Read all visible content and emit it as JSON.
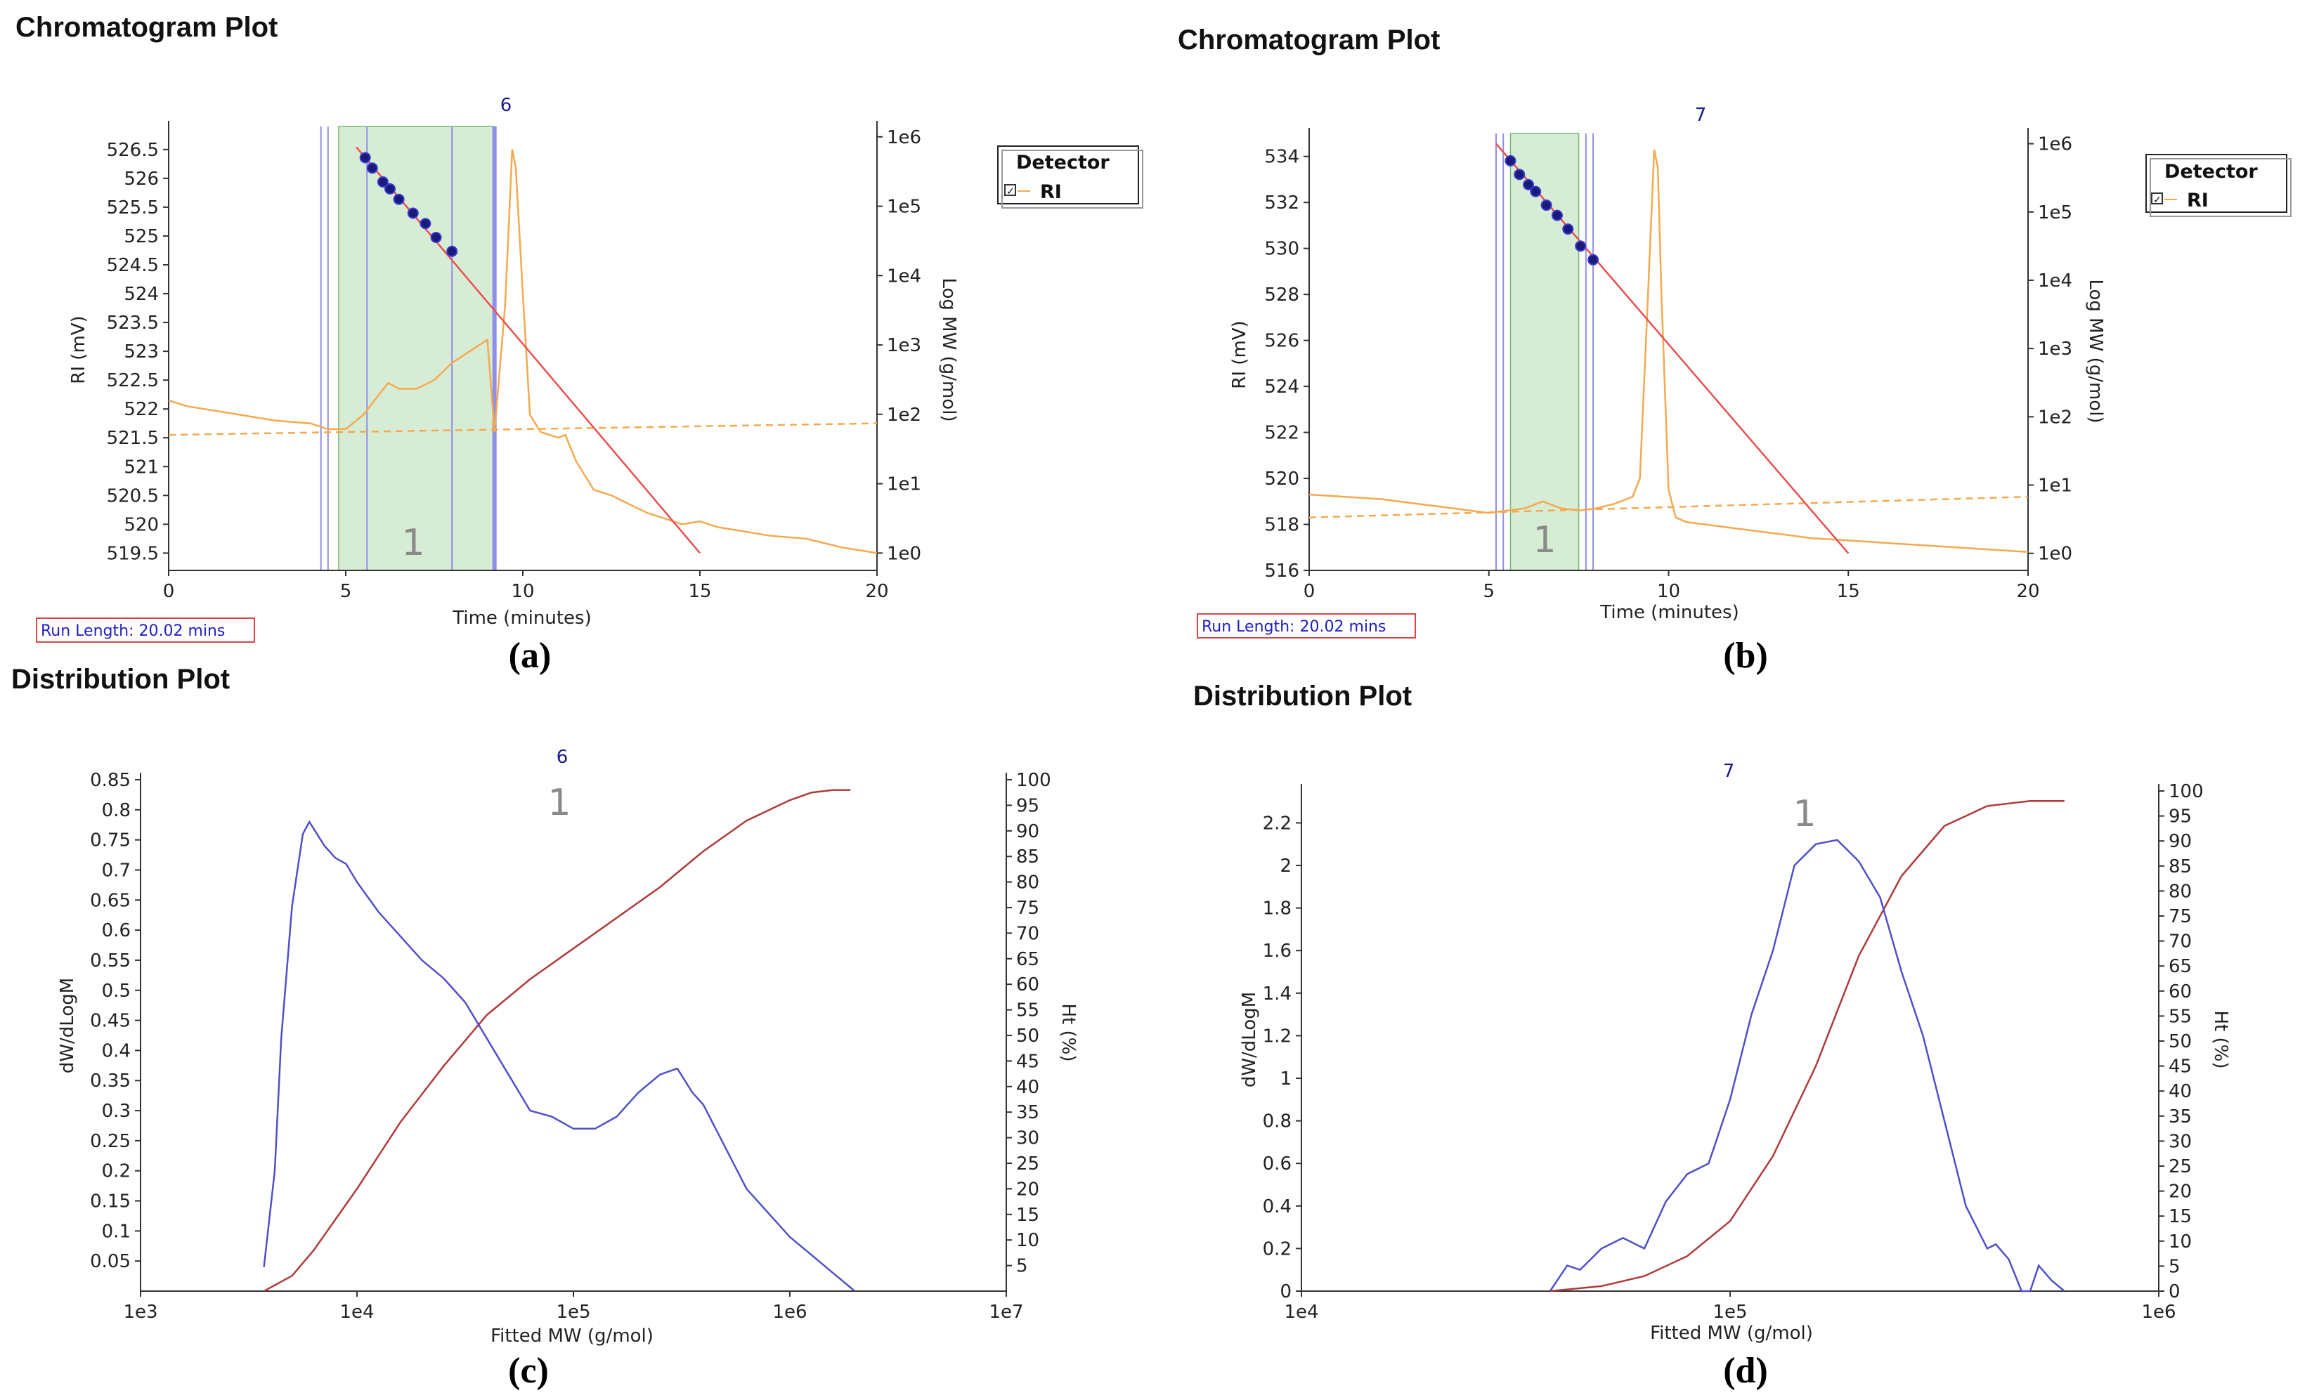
{
  "chart_data": [
    {
      "id": "a",
      "type": "line",
      "title": "Chromatogram Plot",
      "caption": "(a)",
      "xlabel": "Time (minutes)",
      "ylabel": "RI (mV)",
      "y2label": "Log MW (g/mol)",
      "xlim": [
        0,
        20
      ],
      "ylim": [
        519.2,
        526.9
      ],
      "xticks": [
        0,
        5,
        10,
        15,
        20
      ],
      "yticks": [
        519.5,
        520,
        520.5,
        521,
        521.5,
        522,
        522.5,
        523,
        523.5,
        524,
        524.5,
        525,
        525.5,
        526,
        526.5
      ],
      "y2ticks": [
        "1e0",
        "1e1",
        "1e2",
        "1e3",
        "1e4",
        "1e5",
        "1e6"
      ],
      "peak_marker": "6",
      "integration_label": "1",
      "run_length": "Run Length: 20.02 mins",
      "legend": {
        "title": "Detector",
        "entries": [
          "RI"
        ]
      },
      "regions": {
        "shade": [
          4.8,
          9.2
        ],
        "lines": [
          4.3,
          4.5,
          5.6,
          8.0,
          9.2
        ]
      },
      "series": [
        {
          "name": "RI",
          "style": "orange",
          "x": [
            0,
            0.5,
            1,
            2,
            3,
            4,
            4.5,
            5,
            5.5,
            6,
            6.2,
            6.5,
            7,
            7.5,
            8,
            8.5,
            9,
            9.2,
            9.5,
            9.7,
            9.8,
            10,
            10.2,
            10.5,
            11,
            11.2,
            11.5,
            12,
            12.5,
            13,
            13.5,
            14,
            14.5,
            15,
            15.5,
            16,
            17,
            18,
            19,
            20
          ],
          "values": [
            522.15,
            522.05,
            522.0,
            521.9,
            521.8,
            521.75,
            521.65,
            521.65,
            521.9,
            522.3,
            522.45,
            522.35,
            522.35,
            522.5,
            522.8,
            523.0,
            523.2,
            521.6,
            523.8,
            526.5,
            526.2,
            524.0,
            521.9,
            521.6,
            521.5,
            521.55,
            521.1,
            520.6,
            520.5,
            520.35,
            520.2,
            520.1,
            520.0,
            520.05,
            519.95,
            519.9,
            519.8,
            519.75,
            519.6,
            519.5
          ]
        },
        {
          "name": "Baseline",
          "style": "dashed",
          "x": [
            0,
            20
          ],
          "values": [
            521.55,
            521.75
          ]
        },
        {
          "name": "Calibration",
          "style": "red",
          "x": [
            5.3,
            15.0
          ],
          "logmw": [
            5.85,
            0.0
          ]
        },
        {
          "name": "Calibration points",
          "style": "dots",
          "x": [
            5.55,
            5.75,
            6.05,
            6.25,
            6.5,
            6.9,
            7.25,
            7.55,
            8.0
          ],
          "logmw": [
            5.7,
            5.55,
            5.35,
            5.25,
            5.1,
            4.9,
            4.75,
            4.55,
            4.35
          ]
        }
      ]
    },
    {
      "id": "b",
      "type": "line",
      "title": "Chromatogram Plot",
      "caption": "(b)",
      "xlabel": "Time (minutes)",
      "ylabel": "RI (mV)",
      "y2label": "Log MW (g/mol)",
      "xlim": [
        0,
        20
      ],
      "ylim": [
        516,
        535
      ],
      "xticks": [
        0,
        5,
        10,
        15,
        20
      ],
      "yticks": [
        516,
        518,
        520,
        522,
        524,
        526,
        528,
        530,
        532,
        534
      ],
      "y2ticks": [
        "1e0",
        "1e1",
        "1e2",
        "1e3",
        "1e4",
        "1e5",
        "1e6"
      ],
      "peak_marker": "7",
      "integration_label": "1",
      "run_length": "Run Length: 20.02 mins",
      "legend": {
        "title": "Detector",
        "entries": [
          "RI"
        ]
      },
      "regions": {
        "shade": [
          5.6,
          7.5
        ],
        "lines": [
          5.2,
          5.4,
          7.7,
          7.9
        ]
      },
      "series": [
        {
          "name": "RI",
          "style": "orange",
          "x": [
            0,
            1,
            2,
            3,
            4,
            5,
            5.5,
            6,
            6.5,
            7,
            7.5,
            8,
            8.5,
            9,
            9.2,
            9.4,
            9.6,
            9.7,
            9.8,
            10,
            10.2,
            10.5,
            11,
            12,
            13,
            14,
            15,
            16,
            17,
            18,
            19,
            20
          ],
          "values": [
            519.3,
            519.2,
            519.1,
            518.9,
            518.7,
            518.5,
            518.6,
            518.7,
            519.0,
            518.7,
            518.6,
            518.7,
            518.9,
            519.2,
            520.0,
            527.0,
            534.3,
            533.5,
            528.0,
            519.5,
            518.3,
            518.1,
            518.0,
            517.8,
            517.6,
            517.4,
            517.3,
            517.2,
            517.1,
            517.0,
            516.9,
            516.8
          ]
        },
        {
          "name": "Baseline",
          "style": "dashed",
          "x": [
            0,
            20
          ],
          "values": [
            518.3,
            519.2
          ]
        },
        {
          "name": "Calibration",
          "style": "red",
          "x": [
            5.2,
            15.0
          ],
          "logmw": [
            6.0,
            0.0
          ]
        },
        {
          "name": "Calibration points",
          "style": "dots",
          "x": [
            5.6,
            5.85,
            6.1,
            6.3,
            6.6,
            6.9,
            7.2,
            7.55,
            7.9
          ],
          "logmw": [
            5.75,
            5.55,
            5.4,
            5.3,
            5.1,
            4.95,
            4.75,
            4.5,
            4.3
          ]
        }
      ]
    },
    {
      "id": "c",
      "type": "line",
      "title": "Distribution Plot",
      "caption": "(c)",
      "xlabel": "Fitted MW (g/mol)",
      "ylabel": "dW/dLogM",
      "y2label": "Ht (%)",
      "xscale": "log",
      "xlim_log10": [
        3,
        7
      ],
      "xticks": [
        "1e3",
        "1e4",
        "1e5",
        "1e6",
        "1e7"
      ],
      "ylim": [
        0,
        0.85
      ],
      "yticks": [
        0.05,
        0.1,
        0.15,
        0.2,
        0.25,
        0.3,
        0.35,
        0.4,
        0.45,
        0.5,
        0.55,
        0.6,
        0.65,
        0.7,
        0.75,
        0.8,
        0.85
      ],
      "y2lim": [
        0,
        100
      ],
      "y2ticks": [
        5,
        10,
        15,
        20,
        25,
        30,
        35,
        40,
        45,
        50,
        55,
        60,
        65,
        70,
        75,
        80,
        85,
        90,
        95,
        100
      ],
      "peak_marker": "6",
      "integration_label": "1",
      "series": [
        {
          "name": "dW/dLogM",
          "style": "blue",
          "log10_mw": [
            3.57,
            3.62,
            3.65,
            3.7,
            3.75,
            3.78,
            3.85,
            3.9,
            3.95,
            4.0,
            4.1,
            4.2,
            4.3,
            4.4,
            4.5,
            4.6,
            4.7,
            4.8,
            4.9,
            5.0,
            5.1,
            5.2,
            5.3,
            5.4,
            5.48,
            5.55,
            5.6,
            5.7,
            5.8,
            5.9,
            6.0,
            6.1,
            6.2,
            6.3
          ],
          "values": [
            0.04,
            0.2,
            0.42,
            0.64,
            0.76,
            0.78,
            0.74,
            0.72,
            0.71,
            0.68,
            0.63,
            0.59,
            0.55,
            0.52,
            0.48,
            0.42,
            0.36,
            0.3,
            0.29,
            0.27,
            0.27,
            0.29,
            0.33,
            0.36,
            0.37,
            0.33,
            0.31,
            0.24,
            0.17,
            0.13,
            0.09,
            0.06,
            0.03,
            0.0
          ]
        },
        {
          "name": "Ht (%)",
          "style": "red",
          "log10_mw": [
            3.57,
            3.7,
            3.8,
            4.0,
            4.2,
            4.4,
            4.6,
            4.8,
            5.0,
            5.2,
            5.4,
            5.6,
            5.8,
            6.0,
            6.1,
            6.2,
            6.28
          ],
          "values": [
            0,
            3,
            8,
            20,
            33,
            44,
            54,
            61,
            67,
            73,
            79,
            86,
            92,
            96,
            97.5,
            98,
            98
          ]
        }
      ]
    },
    {
      "id": "d",
      "type": "line",
      "title": "Distribution Plot",
      "caption": "(d)",
      "xlabel": "Fitted MW (g/mol)",
      "ylabel": "dW/dLogM",
      "y2label": "Ht (%)",
      "xscale": "log",
      "xlim_log10": [
        4,
        6
      ],
      "xticks": [
        "1e4",
        "1e5",
        "1e6"
      ],
      "ylim": [
        0,
        2.35
      ],
      "yticks": [
        0,
        0.2,
        0.4,
        0.6,
        0.8,
        1,
        1.2,
        1.4,
        1.6,
        1.8,
        2,
        2.2
      ],
      "y2lim": [
        0,
        100
      ],
      "y2ticks": [
        0,
        5,
        10,
        15,
        20,
        25,
        30,
        35,
        40,
        45,
        50,
        55,
        60,
        65,
        70,
        75,
        80,
        85,
        90,
        95,
        100
      ],
      "peak_marker": "7",
      "integration_label": "1",
      "series": [
        {
          "name": "dW/dLogM",
          "style": "blue",
          "log10_mw": [
            4.58,
            4.62,
            4.65,
            4.7,
            4.75,
            4.8,
            4.85,
            4.9,
            4.95,
            5.0,
            5.05,
            5.1,
            5.15,
            5.2,
            5.25,
            5.3,
            5.35,
            5.4,
            5.45,
            5.5,
            5.55,
            5.6,
            5.62,
            5.65,
            5.68,
            5.7,
            5.72,
            5.75,
            5.78
          ],
          "values": [
            0,
            0.12,
            0.1,
            0.2,
            0.25,
            0.2,
            0.42,
            0.55,
            0.6,
            0.9,
            1.3,
            1.6,
            2.0,
            2.1,
            2.12,
            2.02,
            1.85,
            1.5,
            1.2,
            0.8,
            0.4,
            0.2,
            0.22,
            0.15,
            0.0,
            0.0,
            0.12,
            0.05,
            0
          ]
        },
        {
          "name": "Ht (%)",
          "style": "red",
          "log10_mw": [
            4.58,
            4.7,
            4.8,
            4.9,
            5.0,
            5.1,
            5.2,
            5.3,
            5.4,
            5.5,
            5.6,
            5.7,
            5.78
          ],
          "values": [
            0,
            1,
            3,
            7,
            14,
            27,
            45,
            67,
            83,
            93,
            97,
            98,
            98
          ]
        }
      ]
    }
  ]
}
